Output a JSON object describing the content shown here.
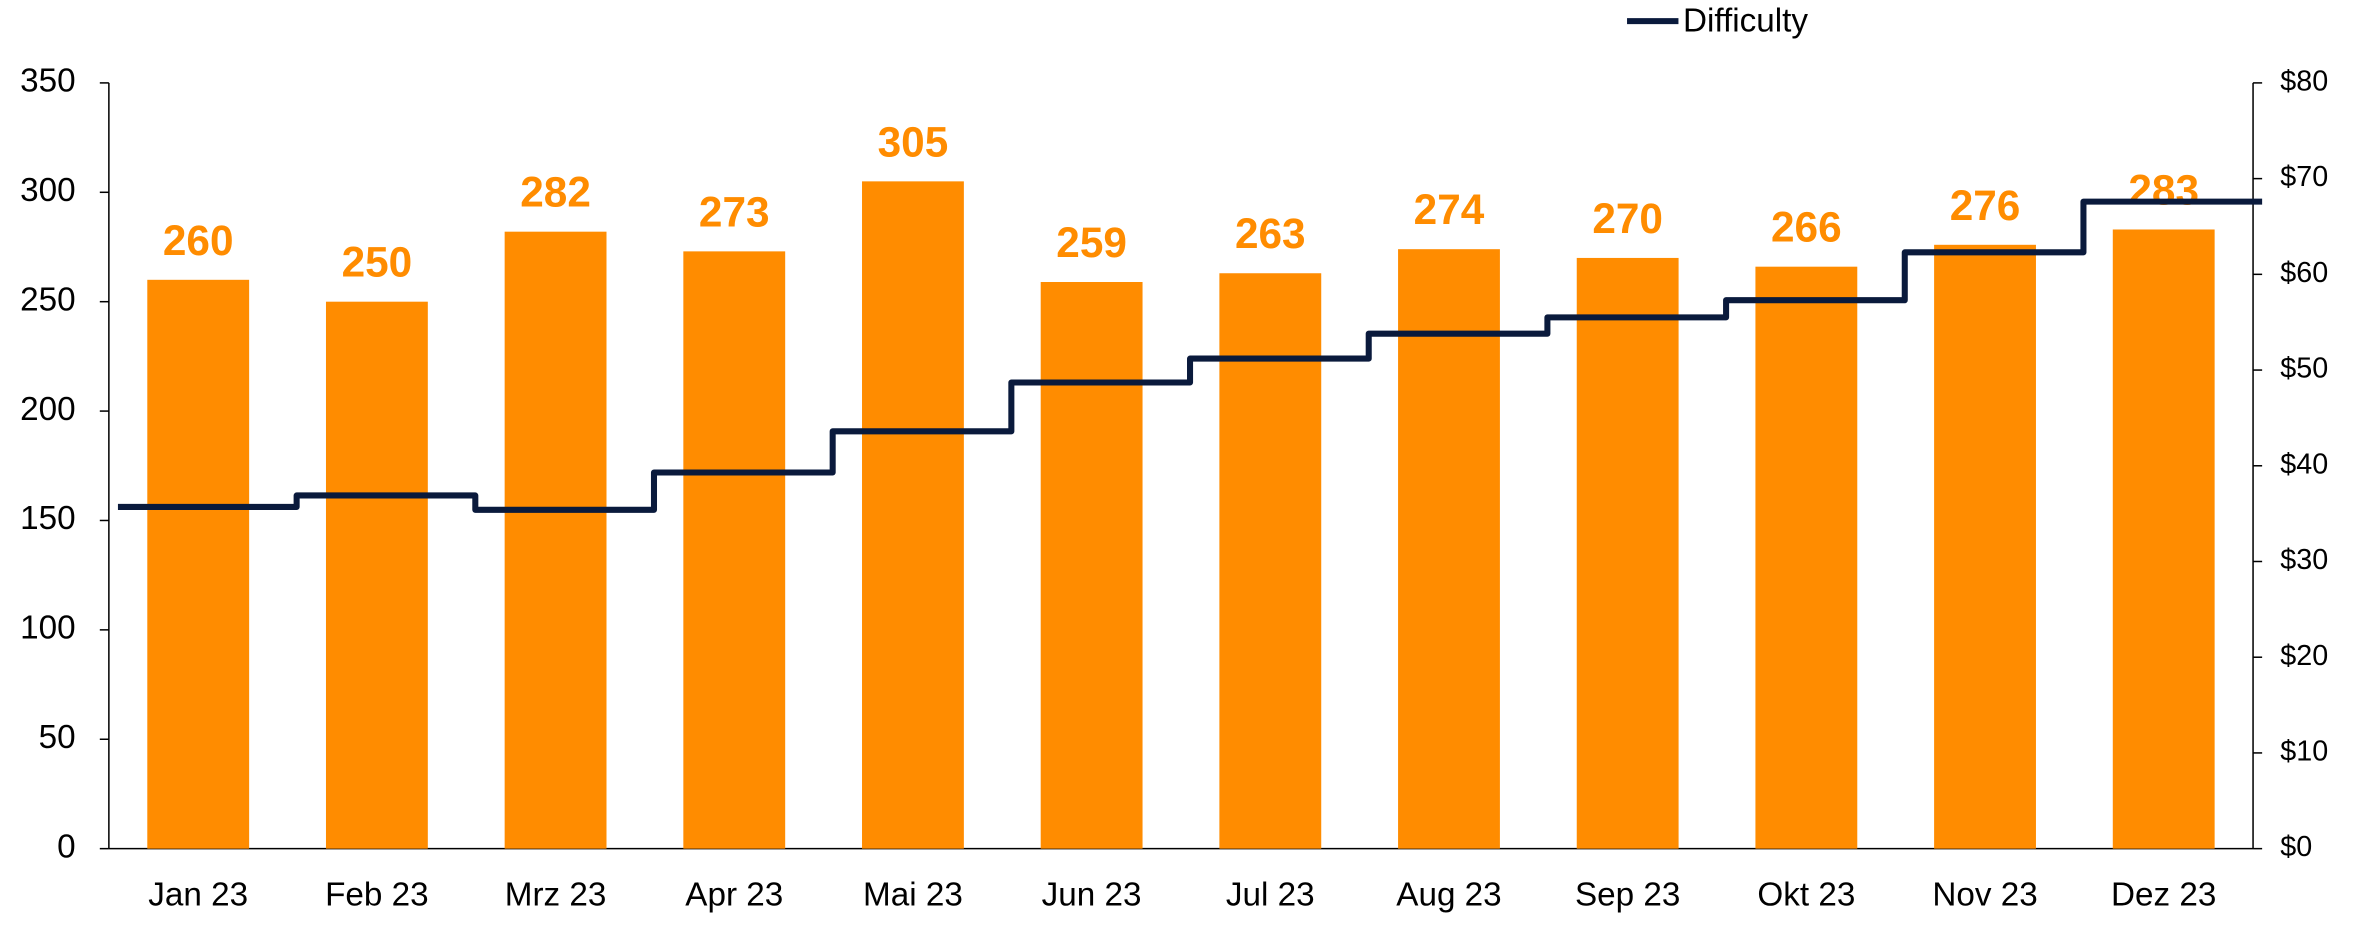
{
  "chart_data": {
    "type": "bar",
    "categories": [
      "Jan 23",
      "Feb 23",
      "Mrz 23",
      "Apr 23",
      "Mai 23",
      "Jun 23",
      "Jul 23",
      "Aug 23",
      "Sep 23",
      "Okt 23",
      "Nov 23",
      "Dez 23"
    ],
    "series": [
      {
        "type": "bar",
        "color": "#ff8c00",
        "values": [
          260,
          250,
          282,
          273,
          305,
          259,
          263,
          274,
          270,
          266,
          276,
          283
        ]
      },
      {
        "type": "line",
        "name": "Difficulty",
        "color": "#0a1a3c",
        "axis": "y2",
        "values": [
          35.7,
          36.9,
          35.4,
          39.3,
          43.6,
          48.7,
          51.2,
          53.8,
          55.5,
          57.3,
          62.3,
          67.6
        ]
      }
    ],
    "ylim": [
      0,
      350
    ],
    "yticks": [
      0,
      50,
      100,
      150,
      200,
      250,
      300,
      350
    ],
    "y2lim": [
      0,
      80
    ],
    "y2ticks": [
      {
        "value": 0,
        "label": "$0"
      },
      {
        "value": 10,
        "label": "$10"
      },
      {
        "value": 20,
        "label": "$20"
      },
      {
        "value": 30,
        "label": "$30"
      },
      {
        "value": 40,
        "label": "$40"
      },
      {
        "value": 50,
        "label": "$50"
      },
      {
        "value": 60,
        "label": "$60"
      },
      {
        "value": 70,
        "label": "$70"
      },
      {
        "value": 80,
        "label": "$80"
      }
    ],
    "legend": "top-right"
  }
}
